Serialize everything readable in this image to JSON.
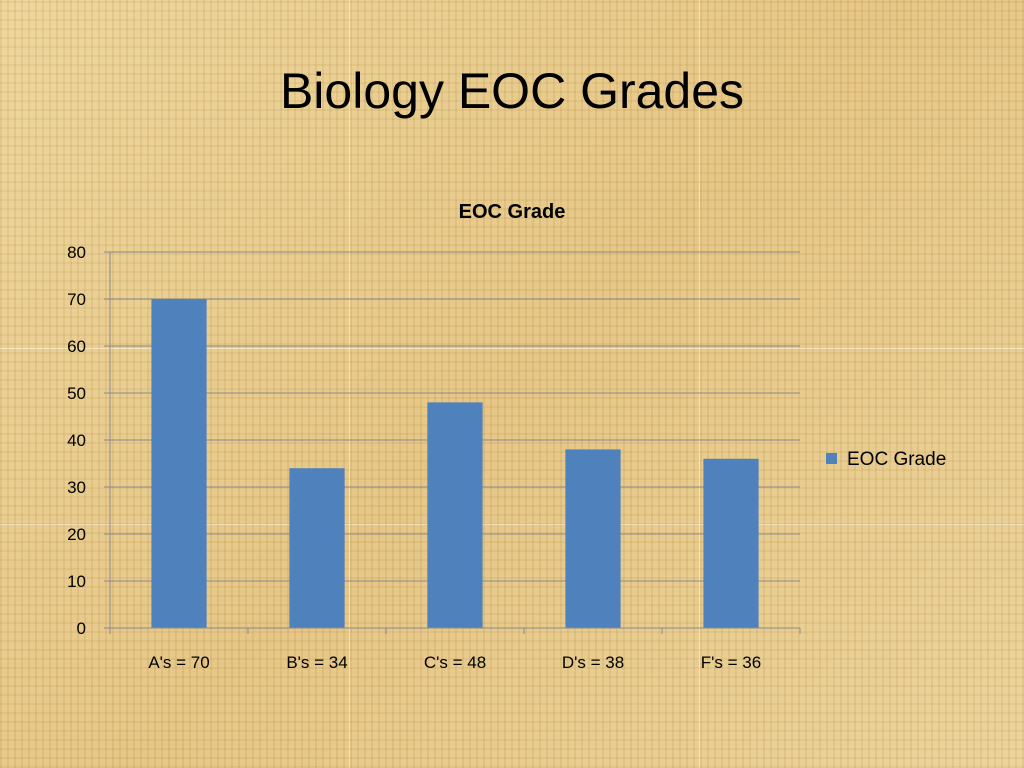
{
  "slide": {
    "title": "Biology EOC Grades"
  },
  "chart_data": {
    "type": "bar",
    "title": "EOC Grade",
    "categories": [
      "A's = 70",
      "B's = 34",
      "C's = 48",
      "D's = 38",
      "F's = 36"
    ],
    "series": [
      {
        "name": "EOC Grade",
        "values": [
          70,
          34,
          48,
          38,
          36
        ],
        "color": "#4f81bd"
      }
    ],
    "ylim": [
      0,
      80
    ],
    "yticks": [
      "0",
      "10",
      "20",
      "30",
      "40",
      "50",
      "60",
      "70",
      "80"
    ],
    "grid": true,
    "legend": "right"
  }
}
